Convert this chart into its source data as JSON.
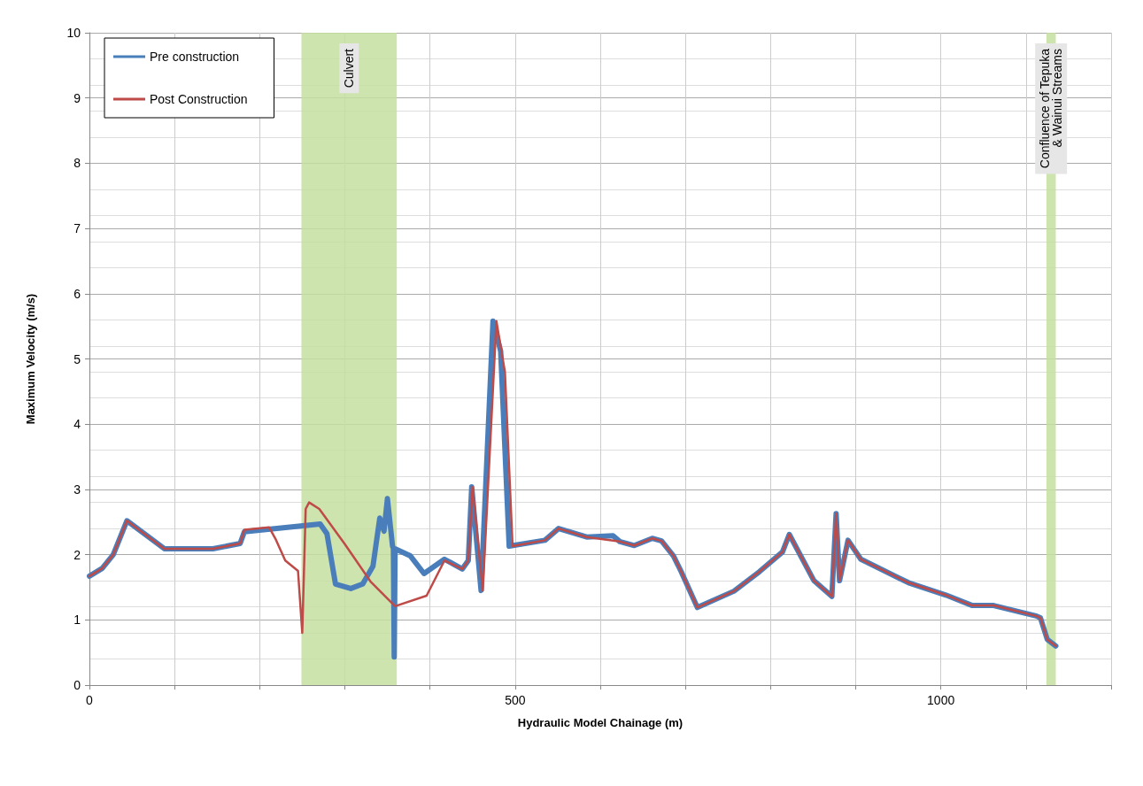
{
  "chart_data": {
    "type": "line",
    "xlabel": "Hydraulic Model Chainage (m)",
    "ylabel": "Maximum Velocity (m/s)",
    "series": [
      {
        "name": "Pre construction",
        "color": "#4a7ebb",
        "x": [
          0,
          15,
          28,
          44,
          88,
          145,
          177,
          182,
          271,
          279,
          289,
          307,
          321,
          333,
          341,
          346,
          350,
          356,
          357,
          358,
          359,
          377,
          393,
          417,
          438,
          445,
          449,
          460,
          474,
          483,
          493,
          535,
          551,
          584,
          615,
          623,
          640,
          661,
          672,
          686,
          695,
          714,
          757,
          787,
          814,
          822,
          851,
          872,
          877,
          881,
          891,
          906,
          962,
          1006,
          1037,
          1062,
          1112,
          1117,
          1125,
          1135
        ],
        "values": [
          1.67,
          1.79,
          2.0,
          2.52,
          2.09,
          2.09,
          2.17,
          2.35,
          2.47,
          2.32,
          1.55,
          1.48,
          1.55,
          1.82,
          2.56,
          2.36,
          2.86,
          2.13,
          2.1,
          0.43,
          2.09,
          1.98,
          1.71,
          1.93,
          1.78,
          1.91,
          3.04,
          1.45,
          5.58,
          5.12,
          2.13,
          2.22,
          2.4,
          2.27,
          2.29,
          2.2,
          2.14,
          2.25,
          2.21,
          1.98,
          1.74,
          1.19,
          1.44,
          1.74,
          2.04,
          2.31,
          1.6,
          1.36,
          2.63,
          1.6,
          2.22,
          1.93,
          1.57,
          1.38,
          1.22,
          1.22,
          1.06,
          1.03,
          0.7,
          0.6
        ]
      },
      {
        "name": "Post Construction",
        "color": "#be4b48",
        "x": [
          0,
          15,
          28,
          44,
          88,
          145,
          177,
          182,
          211,
          219,
          230,
          245,
          250,
          254,
          258,
          270,
          300,
          330,
          359,
          396,
          417,
          438,
          445,
          450,
          462,
          478,
          488,
          497,
          535,
          551,
          584,
          623,
          640,
          661,
          672,
          686,
          695,
          714,
          757,
          787,
          814,
          822,
          851,
          872,
          877,
          881,
          891,
          906,
          962,
          1006,
          1037,
          1062,
          1112,
          1117,
          1125,
          1135
        ],
        "values": [
          1.67,
          1.79,
          2.0,
          2.52,
          2.09,
          2.09,
          2.17,
          2.38,
          2.42,
          2.23,
          1.91,
          1.75,
          0.8,
          2.7,
          2.8,
          2.7,
          2.16,
          1.59,
          1.21,
          1.37,
          1.91,
          1.78,
          1.91,
          3.04,
          1.45,
          5.58,
          4.8,
          2.13,
          2.22,
          2.4,
          2.27,
          2.2,
          2.14,
          2.25,
          2.21,
          1.98,
          1.74,
          1.19,
          1.44,
          1.74,
          2.04,
          2.31,
          1.6,
          1.36,
          2.63,
          1.6,
          2.22,
          1.93,
          1.57,
          1.38,
          1.22,
          1.22,
          1.06,
          1.03,
          0.7,
          0.6
        ]
      }
    ],
    "xlim": [
      0,
      1200
    ],
    "xticks": [
      0,
      {
        "value": 100,
        "label": null
      },
      {
        "value": 200,
        "label": null
      },
      {
        "value": 300,
        "label": null
      },
      {
        "value": 400,
        "label": null
      },
      500,
      {
        "value": 600,
        "label": null
      },
      {
        "value": 700,
        "label": null
      },
      {
        "value": 800,
        "label": null
      },
      {
        "value": 900,
        "label": null
      },
      1000,
      {
        "value": 1100,
        "label": null
      },
      {
        "value": 1200,
        "label": null
      }
    ],
    "ylim": [
      0,
      10
    ],
    "yticks": [
      0,
      1,
      2,
      3,
      4,
      5,
      6,
      7,
      8,
      9,
      10
    ],
    "bands": [
      {
        "axis": "x",
        "from": 249,
        "to": 361,
        "label": "Culvert",
        "color": "#c4dfa0"
      },
      {
        "axis": "x",
        "from": 1124,
        "to": 1135,
        "label": "Confluence of Tepuka\n& Wainui Streams",
        "color": "#c4dfa0"
      }
    ],
    "grid": true,
    "legend": "top left",
    "marker": "none",
    "line_style": "solid"
  }
}
